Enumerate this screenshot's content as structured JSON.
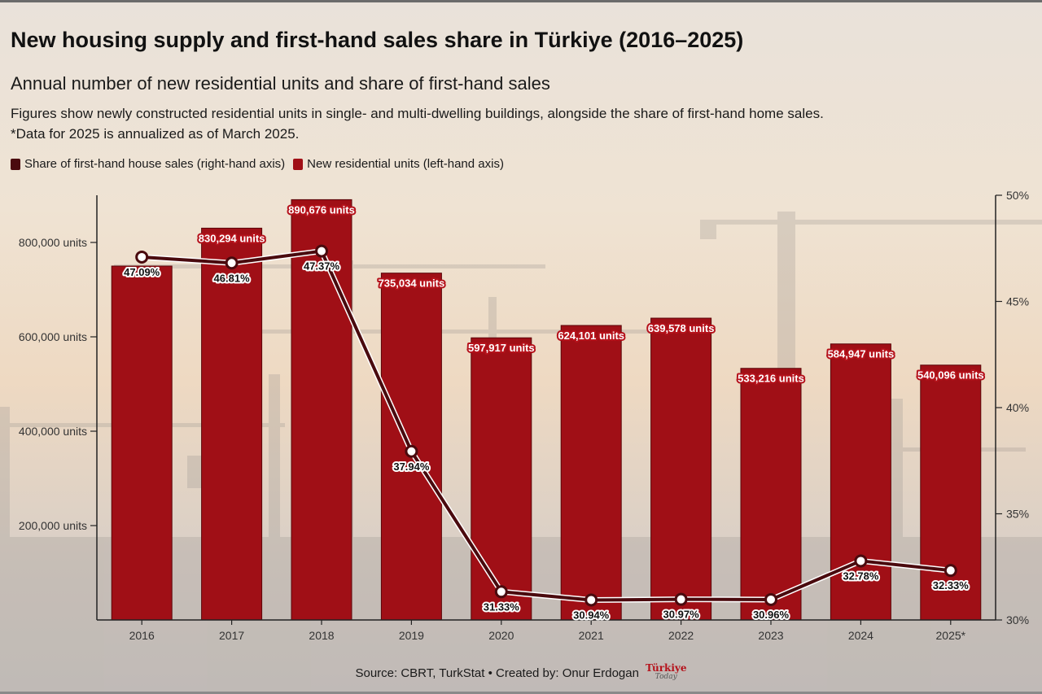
{
  "header": {
    "title": "New housing supply and first-hand sales share in Türkiye (2016–2025)",
    "subtitle": "Annual number of new residential units and share of first-hand sales",
    "description_line1": "Figures show newly constructed residential units in single- and multi-dwelling buildings, alongside the share of first-hand home sales.",
    "description_line2": "*Data for 2025 is annualized as of March 2025."
  },
  "legend": {
    "line_label": "Share of first-hand house sales (right-hand axis)",
    "bar_label": "New residential units (left-hand axis)"
  },
  "colors": {
    "bar": "#a00f16",
    "bar_stroke": "#5a0509",
    "line": "#4a0a0e",
    "label_bg": "#b5121b",
    "text": "#1a1a1a"
  },
  "footer": {
    "source": "Source: CBRT, TurkStat • Created by: Onur Erdogan",
    "logo_top": "Türkiye",
    "logo_bottom": "Today"
  },
  "chart_data": {
    "type": "bar",
    "categories": [
      "2016",
      "2017",
      "2018",
      "2019",
      "2020",
      "2021",
      "2022",
      "2023",
      "2024",
      "2025*"
    ],
    "series": [
      {
        "name": "New residential units (left-hand axis)",
        "type": "bar",
        "axis": "left",
        "values": [
          750000,
          830294,
          890676,
          735034,
          597917,
          624101,
          639578,
          533216,
          584947,
          540096
        ],
        "labels": [
          "",
          "830,294 units",
          "890,676 units",
          "735,034 units",
          "597,917 units",
          "624,101 units",
          "639,578 units",
          "533,216 units",
          "584,947 units",
          "540,096 units"
        ]
      },
      {
        "name": "Share of first-hand house sales (right-hand axis)",
        "type": "line",
        "axis": "right",
        "values": [
          47.09,
          46.81,
          47.37,
          37.94,
          31.33,
          30.94,
          30.97,
          30.96,
          32.78,
          32.33
        ],
        "labels": [
          "47.09%",
          "46.81%",
          "47.37%",
          "37.94%",
          "31.33%",
          "30.94%",
          "30.97%",
          "30.96%",
          "32.78%",
          "32.33%"
        ]
      }
    ],
    "left_axis": {
      "ylim": [
        0,
        900000
      ],
      "ticks": [
        200000,
        400000,
        600000,
        800000
      ],
      "tick_labels": [
        "200,000 units",
        "400,000 units",
        "600,000 units",
        "800,000 units"
      ]
    },
    "right_axis": {
      "ylim": [
        30,
        50
      ],
      "ticks": [
        30,
        35,
        40,
        45,
        50
      ],
      "tick_labels": [
        "30%",
        "35%",
        "40%",
        "45%",
        "50%"
      ]
    },
    "legend_position": "top-left",
    "grid": false
  }
}
